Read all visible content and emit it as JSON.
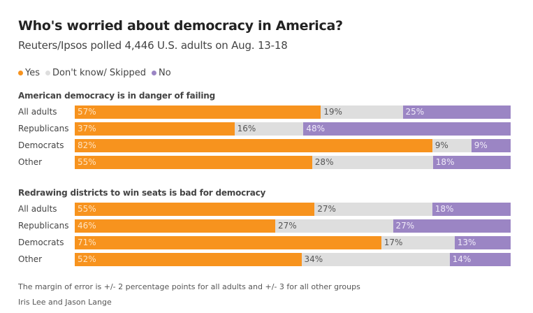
{
  "title": "Who's worried about democracy in America?",
  "subtitle": "Reuters/Ipsos polled 4,446 U.S. adults on Aug. 13-18",
  "legend": [
    {
      "label": "Yes",
      "color": "#f7931e"
    },
    {
      "label": "Don't know/ Skipped",
      "color": "#dedede"
    },
    {
      "label": "No",
      "color": "#9b85c4"
    }
  ],
  "colors": {
    "yes": "#f7931e",
    "dontknow": "#dedede",
    "no": "#9b85c4",
    "yes_text": "#ffe3c0",
    "dontknow_text": "#555555",
    "no_text": "#efeaf8"
  },
  "chart_data": {
    "type": "bar",
    "stacked": true,
    "orientation": "horizontal",
    "series_names": [
      "Yes",
      "Don't know/ Skipped",
      "No"
    ],
    "panels": [
      {
        "title": "American democracy is in danger of failing",
        "categories": [
          "All adults",
          "Republicans",
          "Democrats",
          "Other"
        ],
        "series": [
          {
            "name": "Yes",
            "values": [
              57,
              37,
              82,
              55
            ]
          },
          {
            "name": "Don't know/ Skipped",
            "values": [
              19,
              16,
              9,
              28
            ]
          },
          {
            "name": "No",
            "values": [
              25,
              48,
              9,
              18
            ]
          }
        ]
      },
      {
        "title": "Redrawing districts to win seats is bad for democracy",
        "categories": [
          "All adults",
          "Republicans",
          "Democrats",
          "Other"
        ],
        "series": [
          {
            "name": "Yes",
            "values": [
              55,
              46,
              71,
              52
            ]
          },
          {
            "name": "Don't know/ Skipped",
            "values": [
              27,
              27,
              17,
              34
            ]
          },
          {
            "name": "No",
            "values": [
              18,
              27,
              13,
              14
            ]
          }
        ]
      }
    ],
    "value_suffix": "%"
  },
  "footnote": "The margin of error is +/- 2 percentage points for all adults and +/- 3 for all other groups",
  "credit": "Iris Lee and Jason Lange"
}
